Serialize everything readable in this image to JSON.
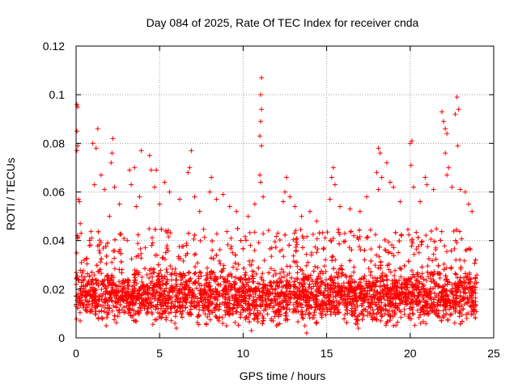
{
  "chart_data": {
    "type": "scatter",
    "title": "Day 084 of 2025, Rate Of TEC Index for receiver cnda",
    "xlabel": "GPS time / hours",
    "ylabel": "ROTI / TECUs",
    "xlim": [
      0,
      25
    ],
    "ylim": [
      0,
      0.12
    ],
    "x_ticks": [
      0,
      5,
      10,
      15,
      20,
      25
    ],
    "y_ticks": [
      0,
      0.02,
      0.04,
      0.06,
      0.08,
      0.1,
      0.12
    ],
    "x_tick_labels": [
      "0",
      "5",
      "10",
      "15",
      "20",
      "25"
    ],
    "y_tick_labels": [
      "0",
      "0.02",
      "0.04",
      "0.06",
      "0.08",
      "0.1",
      "0.12"
    ],
    "grid": true,
    "marker": "+",
    "marker_color": "#ff0000",
    "series": [
      {
        "values": [
          [
            0.05,
            0.096
          ],
          [
            0.1,
            0.095
          ],
          [
            0.05,
            0.085
          ],
          [
            0.1,
            0.079
          ],
          [
            0.05,
            0.077
          ],
          [
            0.15,
            0.057
          ],
          [
            0.2,
            0.056
          ],
          [
            0.25,
            0.047
          ],
          [
            0.3,
            0.043
          ],
          [
            0.1,
            0.041
          ],
          [
            1.0,
            0.08
          ],
          [
            1.2,
            0.078
          ],
          [
            1.3,
            0.086
          ],
          [
            1.5,
            0.067
          ],
          [
            1.1,
            0.063
          ],
          [
            1.7,
            0.061
          ],
          [
            2.1,
            0.072
          ],
          [
            2.2,
            0.082
          ],
          [
            2.15,
            0.076
          ],
          [
            2.3,
            0.062
          ],
          [
            2.6,
            0.055
          ],
          [
            2.0,
            0.05
          ],
          [
            3.2,
            0.069
          ],
          [
            3.5,
            0.07
          ],
          [
            3.3,
            0.063
          ],
          [
            3.9,
            0.077
          ],
          [
            3.8,
            0.058
          ],
          [
            3.6,
            0.054
          ],
          [
            4.4,
            0.075
          ],
          [
            4.5,
            0.069
          ],
          [
            4.8,
            0.069
          ],
          [
            4.7,
            0.062
          ],
          [
            5.3,
            0.064
          ],
          [
            5.0,
            0.055
          ],
          [
            5.6,
            0.06
          ],
          [
            6.2,
            0.057
          ],
          [
            6.9,
            0.077
          ],
          [
            6.8,
            0.07
          ],
          [
            6.7,
            0.068
          ],
          [
            7.1,
            0.058
          ],
          [
            7.4,
            0.052
          ],
          [
            8.1,
            0.066
          ],
          [
            8.0,
            0.06
          ],
          [
            8.4,
            0.057
          ],
          [
            8.8,
            0.059
          ],
          [
            9.2,
            0.054
          ],
          [
            9.6,
            0.052
          ],
          [
            10.3,
            0.05
          ],
          [
            10.7,
            0.055
          ],
          [
            11.1,
            0.107
          ],
          [
            11.05,
            0.1
          ],
          [
            11.1,
            0.094
          ],
          [
            11.05,
            0.089
          ],
          [
            11.0,
            0.083
          ],
          [
            11.1,
            0.079
          ],
          [
            11.0,
            0.067
          ],
          [
            11.05,
            0.064
          ],
          [
            11.2,
            0.058
          ],
          [
            12.6,
            0.066
          ],
          [
            12.5,
            0.06
          ],
          [
            12.4,
            0.056
          ],
          [
            12.8,
            0.058
          ],
          [
            13.1,
            0.054
          ],
          [
            13.5,
            0.05
          ],
          [
            14.0,
            0.052
          ],
          [
            14.4,
            0.048
          ],
          [
            15.4,
            0.07
          ],
          [
            15.3,
            0.066
          ],
          [
            15.5,
            0.063
          ],
          [
            15.2,
            0.057
          ],
          [
            15.8,
            0.054
          ],
          [
            16.4,
            0.053
          ],
          [
            17.0,
            0.052
          ],
          [
            17.4,
            0.058
          ],
          [
            18.1,
            0.078
          ],
          [
            18.2,
            0.076
          ],
          [
            18.0,
            0.068
          ],
          [
            18.3,
            0.066
          ],
          [
            18.1,
            0.061
          ],
          [
            18.6,
            0.072
          ],
          [
            18.8,
            0.064
          ],
          [
            19.0,
            0.062
          ],
          [
            19.4,
            0.056
          ],
          [
            20.1,
            0.081
          ],
          [
            20.0,
            0.08
          ],
          [
            20.05,
            0.071
          ],
          [
            20.2,
            0.062
          ],
          [
            20.6,
            0.056
          ],
          [
            20.9,
            0.066
          ],
          [
            21.0,
            0.063
          ],
          [
            21.4,
            0.061
          ],
          [
            21.9,
            0.093
          ],
          [
            22.0,
            0.089
          ],
          [
            22.1,
            0.086
          ],
          [
            22.2,
            0.084
          ],
          [
            22.1,
            0.076
          ],
          [
            22.3,
            0.07
          ],
          [
            22.2,
            0.067
          ],
          [
            22.5,
            0.062
          ],
          [
            22.8,
            0.099
          ],
          [
            22.9,
            0.094
          ],
          [
            22.7,
            0.092
          ],
          [
            22.85,
            0.079
          ],
          [
            23.0,
            0.061
          ],
          [
            23.3,
            0.06
          ],
          [
            23.5,
            0.055
          ],
          [
            23.7,
            0.052
          ],
          [
            13.8,
            0.002
          ],
          [
            13.7,
            0.005
          ],
          [
            16.9,
            0.004
          ],
          [
            1.8,
            0.005
          ],
          [
            6.0,
            0.004
          ],
          [
            9.0,
            0.005
          ],
          [
            10.5,
            0.003
          ],
          [
            19.0,
            0.005
          ],
          [
            12.0,
            0.005
          ]
        ]
      }
    ],
    "dense_band": {
      "x_range": [
        0,
        24
      ],
      "y_range": [
        0.005,
        0.045
      ],
      "y_center": 0.017
    }
  }
}
